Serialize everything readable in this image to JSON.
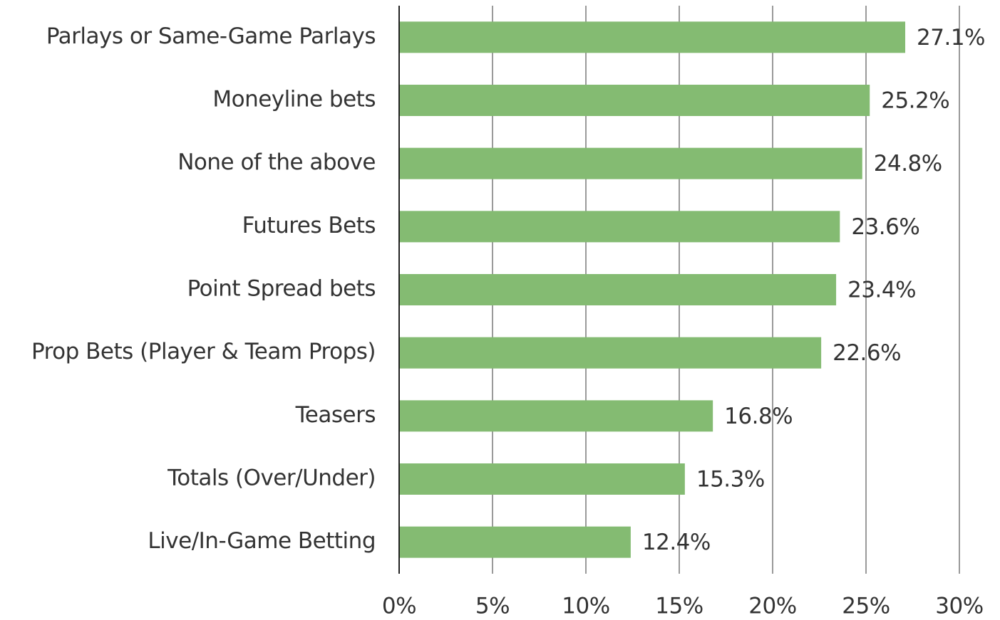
{
  "chart_data": {
    "type": "bar",
    "orientation": "horizontal",
    "categories": [
      "Parlays or Same-Game Parlays",
      "Moneyline bets",
      "None of the above",
      "Futures Bets",
      "Point Spread bets",
      "Prop Bets (Player & Team Props)",
      "Teasers",
      "Totals (Over/Under)",
      "Live/In-Game Betting"
    ],
    "values": [
      27.1,
      25.2,
      24.8,
      23.6,
      23.4,
      22.6,
      16.8,
      15.3,
      12.4
    ],
    "value_labels": [
      "27.1%",
      "25.2%",
      "24.8%",
      "23.6%",
      "23.4%",
      "22.6%",
      "16.8%",
      "15.3%",
      "12.4%"
    ],
    "color": "#84bb72",
    "xlim": [
      0,
      30
    ],
    "xticks": [
      {
        "value": 0,
        "label": "0%"
      },
      {
        "value": 5,
        "label": "5%"
      },
      {
        "value": 10,
        "label": "10%"
      },
      {
        "value": 15,
        "label": "15%"
      },
      {
        "value": 20,
        "label": "20%"
      },
      {
        "value": 25,
        "label": "25%"
      },
      {
        "value": 30,
        "label": "30%"
      }
    ],
    "grid": true
  }
}
